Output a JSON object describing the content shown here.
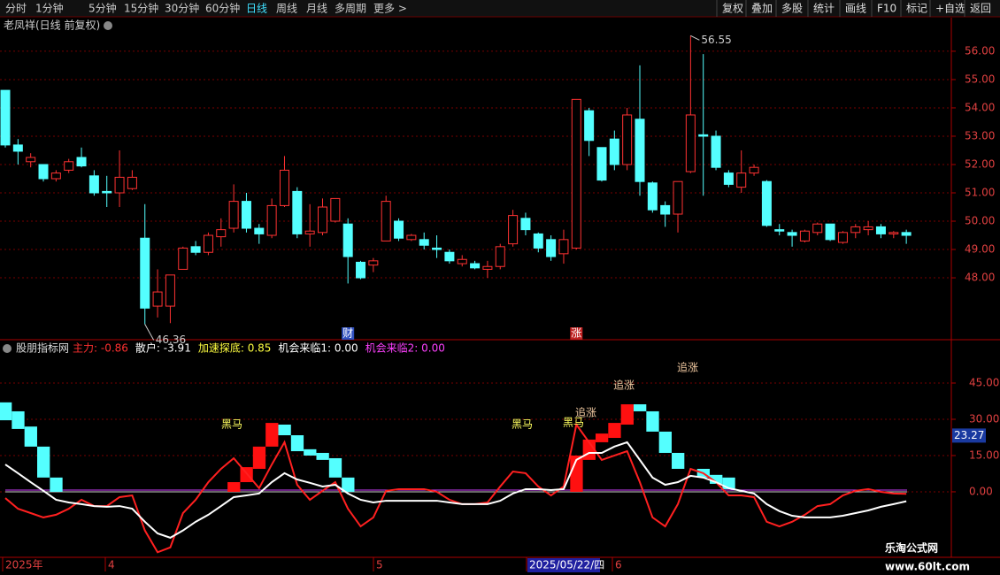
{
  "toolbar": {
    "left": [
      "分时",
      "1分钟",
      "5分钟",
      "15分钟",
      "30分钟",
      "60分钟",
      "日线",
      "周线",
      "月线",
      "多周期",
      "更多 >"
    ],
    "active_index": 6,
    "right": [
      "复权",
      "叠加",
      "多股",
      "统计",
      "画线",
      "F10",
      "标记",
      "+自选",
      "返回"
    ]
  },
  "stock_title": "老凤祥(日线 前复权)",
  "chart_data": [
    {
      "type": "candlestick",
      "up_color": "#ff3232",
      "down_color": "#54ffff",
      "open": [
        54.62,
        52.69,
        52.1,
        52.0,
        51.5,
        51.8,
        52.25,
        51.6,
        51.05,
        51.0,
        51.15,
        49.4,
        47.0,
        47.0,
        48.3,
        49.1,
        48.9,
        49.45,
        49.75,
        50.7,
        49.75,
        49.5,
        50.55,
        51.05,
        49.55,
        49.6,
        50.0,
        49.9,
        48.55,
        48.45,
        49.3,
        50.0,
        49.35,
        49.35,
        49.05,
        48.9,
        48.5,
        48.5,
        48.3,
        48.4,
        49.2,
        50.1,
        49.55,
        49.35,
        48.85,
        49.05,
        53.9,
        52.6,
        52.9,
        52.0,
        53.6,
        51.35,
        50.55,
        50.25,
        51.75,
        53.05,
        53.0,
        51.7,
        51.2,
        51.7,
        51.4,
        49.7,
        49.6,
        49.3,
        49.6,
        49.9,
        49.25,
        49.6,
        49.7,
        49.8,
        49.55,
        49.6
      ],
      "high": [
        54.62,
        52.9,
        52.4,
        52.0,
        51.8,
        52.2,
        52.6,
        51.8,
        51.6,
        52.5,
        51.8,
        50.6,
        48.3,
        48.1,
        49.1,
        49.3,
        49.6,
        50.1,
        51.3,
        51.0,
        49.9,
        50.8,
        52.3,
        51.2,
        50.6,
        50.8,
        50.8,
        50.1,
        48.6,
        48.7,
        50.9,
        50.1,
        49.55,
        49.6,
        49.5,
        49.0,
        48.8,
        48.6,
        48.6,
        49.2,
        50.4,
        50.3,
        49.6,
        49.5,
        49.7,
        54.3,
        54.0,
        52.6,
        53.2,
        54.0,
        55.5,
        51.4,
        50.7,
        51.4,
        56.55,
        55.9,
        53.2,
        51.8,
        52.5,
        52.0,
        51.45,
        49.9,
        49.7,
        49.7,
        49.95,
        49.9,
        49.65,
        49.9,
        50.0,
        49.9,
        49.65,
        49.7
      ],
      "low": [
        52.6,
        52.0,
        51.9,
        51.4,
        51.4,
        51.7,
        51.9,
        50.9,
        50.5,
        50.5,
        51.1,
        46.36,
        46.6,
        46.4,
        48.3,
        48.8,
        48.8,
        49.1,
        49.6,
        49.6,
        49.2,
        49.4,
        50.5,
        49.4,
        49.1,
        49.5,
        49.95,
        47.8,
        47.95,
        48.2,
        49.3,
        49.3,
        49.3,
        49.0,
        48.7,
        48.5,
        48.4,
        48.3,
        48.0,
        48.3,
        49.1,
        49.5,
        48.9,
        48.6,
        48.5,
        49.0,
        52.3,
        51.4,
        51.8,
        51.8,
        50.9,
        50.3,
        49.8,
        49.6,
        51.7,
        50.9,
        51.8,
        51.2,
        51.0,
        51.6,
        49.8,
        49.5,
        49.1,
        49.25,
        49.5,
        49.3,
        49.2,
        49.4,
        49.5,
        49.4,
        49.4,
        49.2
      ],
      "close": [
        52.69,
        52.47,
        52.25,
        51.5,
        51.7,
        52.1,
        51.95,
        51.0,
        51.0,
        51.55,
        51.55,
        46.93,
        47.5,
        48.1,
        49.05,
        48.9,
        49.5,
        49.7,
        50.7,
        49.75,
        49.55,
        50.55,
        51.8,
        49.55,
        49.65,
        50.5,
        50.8,
        48.75,
        48.0,
        48.6,
        50.7,
        49.4,
        49.5,
        49.15,
        49.0,
        48.6,
        48.65,
        48.35,
        48.4,
        49.1,
        50.2,
        49.7,
        49.05,
        48.75,
        49.35,
        54.3,
        52.85,
        51.45,
        52.0,
        53.75,
        51.4,
        50.4,
        50.25,
        51.4,
        53.75,
        53.0,
        51.9,
        51.3,
        51.7,
        51.9,
        49.85,
        49.65,
        49.5,
        49.65,
        49.9,
        49.35,
        49.6,
        49.8,
        49.8,
        49.55,
        49.6,
        49.5
      ],
      "max_label": {
        "value": 56.55,
        "label": "56.55"
      },
      "min_label": {
        "value": 46.36,
        "label": "46.36"
      },
      "markers": [
        {
          "index": 27,
          "label": "财",
          "color": "#3050c0"
        },
        {
          "index": 45,
          "label": "涨",
          "color": "#c02020"
        }
      ],
      "ylim": [
        45.94,
        56.56
      ],
      "yticks": [
        {
          "value": 56,
          "label": "56.00"
        },
        {
          "value": 55,
          "label": "55.00"
        },
        {
          "value": 54,
          "label": "54.00"
        },
        {
          "value": 53,
          "label": "53.00"
        },
        {
          "value": 52,
          "label": "52.00"
        },
        {
          "value": 51,
          "label": "51.00"
        },
        {
          "value": 50,
          "label": "50.00"
        },
        {
          "value": 49,
          "label": "49.00"
        },
        {
          "value": 48,
          "label": "48.00"
        }
      ],
      "grid": true
    },
    {
      "type": "indicator",
      "title": "股朋指标网",
      "readouts": [
        {
          "text": "主力: -0.86",
          "color": "#ff3030"
        },
        {
          "text": "散户: -3.91",
          "color": "#ffffff"
        },
        {
          "text": "加速探底: 0.85",
          "color": "#ffff40"
        },
        {
          "text": "机会来临1: 0.00",
          "color": "#ffffff"
        },
        {
          "text": "机会来临2: 0.00",
          "color": "#ff40ff"
        }
      ],
      "series": [
        {
          "color": "#ff2020",
          "values": [
            -2.6,
            -7,
            -8.8,
            -10.6,
            -9.5,
            -7,
            -3.3,
            -5.9,
            -5.9,
            -2.2,
            -1.5,
            -16,
            -25,
            -23,
            -8.8,
            -3.3,
            4,
            9.5,
            13.9,
            7.7,
            1.5,
            11.3,
            20.5,
            2.9,
            -3.3,
            0.4,
            4,
            -7,
            -14.3,
            -10.6,
            0.4,
            1.1,
            1.1,
            1.1,
            0,
            -3.3,
            -5.1,
            -5.1,
            -4.4,
            2.2,
            8.4,
            7.7,
            2.2,
            -1.5,
            2.2,
            27.8,
            20.5,
            13.2,
            15,
            16.8,
            4,
            -10.6,
            -14.3,
            -5.1,
            9.5,
            7.7,
            4,
            -1.5,
            -1.5,
            -2.2,
            -12.4,
            -14.3,
            -12.4,
            -9.5,
            -5.9,
            -5.1,
            -1.5,
            0.4,
            1.1,
            0,
            -0.7,
            -0.86
          ]
        },
        {
          "color": "#ffffff",
          "values": [
            11.3,
            7.7,
            4,
            0.4,
            -3.3,
            -4.4,
            -5.1,
            -5.9,
            -6.2,
            -5.9,
            -7,
            -12.4,
            -17.2,
            -19,
            -16,
            -12.4,
            -9.5,
            -5.9,
            -2.2,
            -1.5,
            -0.7,
            4,
            7.7,
            5.1,
            3.7,
            2.2,
            2.9,
            -0.7,
            -3.3,
            -4.4,
            -3.7,
            -3.7,
            -3.7,
            -3.7,
            -3.7,
            -4.4,
            -5.1,
            -5.1,
            -5.1,
            -3.7,
            -0.7,
            1.1,
            1.1,
            0.7,
            1.1,
            13.2,
            16.1,
            16.1,
            18.7,
            20.5,
            13.2,
            5.9,
            2.9,
            4,
            6.6,
            5.9,
            4,
            1.5,
            0.4,
            -0.7,
            -5.1,
            -8,
            -9.9,
            -10.6,
            -10.6,
            -10.6,
            -9.9,
            -8.8,
            -7.7,
            -6.2,
            -5.1,
            -3.91
          ]
        }
      ],
      "blocks": [
        {
          "color": "#54ffff",
          "index": 0,
          "top": 37,
          "bottom": 29.6
        },
        {
          "color": "#54ffff",
          "index": 1,
          "top": 33.3,
          "bottom": 26
        },
        {
          "color": "#54ffff",
          "index": 2,
          "top": 27,
          "bottom": 18.7
        },
        {
          "color": "#54ffff",
          "index": 3,
          "top": 18.7,
          "bottom": 5.9
        },
        {
          "color": "#54ffff",
          "index": 4,
          "top": 5.9,
          "bottom": 0
        },
        {
          "color": "#ff1010",
          "index": 18,
          "top": 4,
          "bottom": 0
        },
        {
          "color": "#ff1010",
          "index": 19,
          "top": 10.2,
          "bottom": 4
        },
        {
          "color": "#ff1010",
          "index": 20,
          "top": 18.7,
          "bottom": 9.5
        },
        {
          "color": "#ff1010",
          "index": 21,
          "top": 28.5,
          "bottom": 18.7
        },
        {
          "color": "#54ffff",
          "index": 22,
          "top": 27.8,
          "bottom": 23.4
        },
        {
          "color": "#54ffff",
          "index": 23,
          "top": 23.4,
          "bottom": 16.8
        },
        {
          "color": "#54ffff",
          "index": 24,
          "top": 17.6,
          "bottom": 15
        },
        {
          "color": "#54ffff",
          "index": 25,
          "top": 16.1,
          "bottom": 13.2
        },
        {
          "color": "#54ffff",
          "index": 26,
          "top": 13.9,
          "bottom": 5.9
        },
        {
          "color": "#54ffff",
          "index": 27,
          "top": 5.9,
          "bottom": 0
        },
        {
          "color": "#ff1010",
          "index": 45,
          "top": 15,
          "bottom": 0
        },
        {
          "color": "#ff1010",
          "index": 46,
          "top": 21.6,
          "bottom": 13.2
        },
        {
          "color": "#ff1010",
          "index": 47,
          "top": 24.1,
          "bottom": 20.5
        },
        {
          "color": "#ff1010",
          "index": 48,
          "top": 28.5,
          "bottom": 22.3
        },
        {
          "color": "#ff1010",
          "index": 49,
          "top": 36.2,
          "bottom": 27.8
        },
        {
          "color": "#54ffff",
          "index": 50,
          "top": 36.2,
          "bottom": 33.3
        },
        {
          "color": "#54ffff",
          "index": 51,
          "top": 33.3,
          "bottom": 24.9
        },
        {
          "color": "#54ffff",
          "index": 52,
          "top": 24.9,
          "bottom": 16.1
        },
        {
          "color": "#54ffff",
          "index": 53,
          "top": 16.1,
          "bottom": 9.5
        },
        {
          "color": "#54ffff",
          "index": 55,
          "top": 9.5,
          "bottom": 5.9
        },
        {
          "color": "#54ffff",
          "index": 56,
          "top": 7,
          "bottom": 3.3
        },
        {
          "color": "#54ffff",
          "index": 57,
          "top": 5.9,
          "bottom": 1.1
        }
      ],
      "annotations": [
        {
          "text": "黑马",
          "color": "#ffff60"
        },
        {
          "text": "黑马",
          "color": "#ffff60"
        },
        {
          "text": "黑马",
          "color": "#ffff60"
        },
        {
          "text": "追涨",
          "color": "#f0c8a0"
        },
        {
          "text": "追涨",
          "color": "#f0c8a0"
        },
        {
          "text": "追涨",
          "color": "#f0c8a0"
        }
      ],
      "current_value": {
        "value": 23.27,
        "label": "23.27"
      },
      "ylim": [
        -27.1,
        62.2
      ],
      "yticks": [
        {
          "value": 45,
          "label": "45.00"
        },
        {
          "value": 30,
          "label": "30.00"
        },
        {
          "value": 15,
          "label": "15.00"
        },
        {
          "value": 0,
          "label": "0.00"
        }
      ],
      "grid": true
    }
  ],
  "date_axis": [
    "2025年",
    "4",
    "5",
    "2025/05/22/四",
    "6"
  ],
  "watermark": {
    "name": "乐淘公式网",
    "url": "www.60lt.com"
  }
}
